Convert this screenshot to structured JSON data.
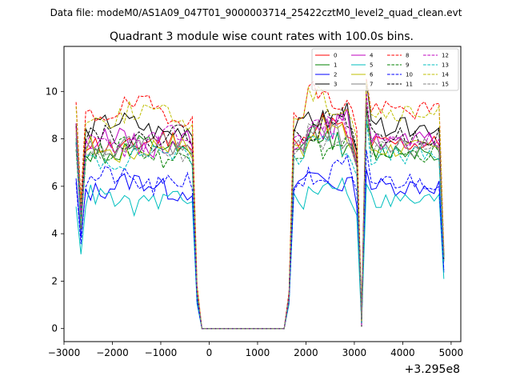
{
  "chart_data": {
    "type": "line",
    "suptitle": "Data file: modeM0/AS1A09_047T01_9000003714_25422cztM0_level2_quad_clean.evt",
    "title": "Quadrant 3 module wise count rates with 100.0s bins.",
    "xlabel": "",
    "ylabel": "",
    "x_offset_label": "+3.295e8",
    "xlim": [
      -3000,
      5200
    ],
    "ylim": [
      -0.55,
      11.9
    ],
    "xticks": [
      -3000,
      -2000,
      -1000,
      0,
      1000,
      2000,
      3000,
      4000,
      5000
    ],
    "xtick_labels": [
      "−3000",
      "−2000",
      "−1000",
      "0",
      "1000",
      "2000",
      "3000",
      "4000",
      "5000"
    ],
    "yticks": [
      0,
      2,
      4,
      6,
      8,
      10
    ],
    "ytick_labels": [
      "0",
      "2",
      "4",
      "6",
      "8",
      "10"
    ],
    "legend_position": "top-right",
    "segments": [
      {
        "x0": -2750,
        "x1": -350,
        "step": 100
      },
      {
        "x0": -250,
        "x1": 1550,
        "step": 100
      },
      {
        "x0": 1650,
        "x1": 4850,
        "step": 100
      }
    ],
    "series": [
      {
        "name": "0",
        "color": "#ff0000",
        "dash": "solid",
        "base": 7.8,
        "seed": 11
      },
      {
        "name": "1",
        "color": "#008000",
        "dash": "solid",
        "base": 7.5,
        "seed": 12
      },
      {
        "name": "2",
        "color": "#0000ff",
        "dash": "solid",
        "base": 6.0,
        "seed": 13
      },
      {
        "name": "3",
        "color": "#000000",
        "dash": "solid",
        "base": 8.5,
        "seed": 14
      },
      {
        "name": "4",
        "color": "#bf00bf",
        "dash": "solid",
        "base": 7.9,
        "seed": 15
      },
      {
        "name": "5",
        "color": "#00bfbf",
        "dash": "solid",
        "base": 5.4,
        "seed": 16
      },
      {
        "name": "6",
        "color": "#bfbf00",
        "dash": "solid",
        "base": 7.6,
        "seed": 17
      },
      {
        "name": "7",
        "color": "#808080",
        "dash": "solid",
        "base": 7.7,
        "seed": 18
      },
      {
        "name": "8",
        "color": "#ff0000",
        "dash": "dashed",
        "base": 9.2,
        "seed": 19
      },
      {
        "name": "9",
        "color": "#008000",
        "dash": "dashed",
        "base": 7.4,
        "seed": 20
      },
      {
        "name": "10",
        "color": "#0000ff",
        "dash": "dashed",
        "base": 6.2,
        "seed": 21
      },
      {
        "name": "11",
        "color": "#000000",
        "dash": "dashed",
        "base": 8.1,
        "seed": 22
      },
      {
        "name": "12",
        "color": "#bf00bf",
        "dash": "dashed",
        "base": 7.9,
        "seed": 23
      },
      {
        "name": "13",
        "color": "#00bfbf",
        "dash": "dashed",
        "base": 7.3,
        "seed": 24
      },
      {
        "name": "14",
        "color": "#bfbf00",
        "dash": "dashed",
        "base": 9.0,
        "seed": 25
      },
      {
        "name": "15",
        "color": "#808080",
        "dash": "dashed",
        "base": 7.6,
        "seed": 26
      }
    ]
  }
}
